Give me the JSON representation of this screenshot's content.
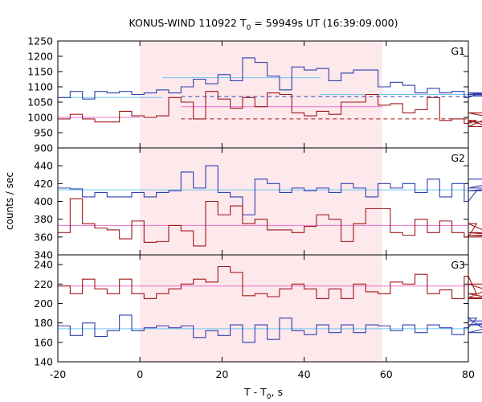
{
  "chart_data": {
    "type": "line",
    "title": {
      "prefix": "KONUS-WIND 110922 T",
      "sub": "0",
      "suffix": " = 59949s UT (16:39:09.000)"
    },
    "xlabel": {
      "prefix": "T - T",
      "sub": "0",
      "suffix": ", s"
    },
    "ylabel": "counts / sec",
    "xlim": [
      -20,
      80
    ],
    "xticks": [
      -20,
      0,
      20,
      40,
      60,
      80
    ],
    "shaded_region": {
      "x0": 0,
      "x1": 59,
      "color": "#fde8ec"
    },
    "bin_width": 3.0,
    "bin_start": -20.0,
    "colors": {
      "blue": "#3040b0",
      "red": "#a01818",
      "cyan": "#70c8f0",
      "pink": "#e870d0"
    },
    "panels": [
      {
        "label": "G1",
        "ylim": [
          900,
          1250
        ],
        "yticks": [
          900,
          950,
          1000,
          1050,
          1100,
          1150,
          1200,
          1250
        ],
        "series": [
          {
            "color": "blue",
            "values": [
              1065,
              1085,
              1060,
              1085,
              1080,
              1085,
              1075,
              1080,
              1090,
              1080,
              1100,
              1125,
              1110,
              1140,
              1120,
              1195,
              1180,
              1135,
              1090,
              1165,
              1155,
              1160,
              1120,
              1145,
              1155,
              1155,
              1100,
              1115,
              1105,
              1080,
              1095,
              1080,
              1085,
              1065,
              1075,
              1080,
              1075,
              1070
            ]
          },
          {
            "color": "red",
            "values": [
              995,
              1010,
              995,
              985,
              985,
              1020,
              1005,
              1000,
              1005,
              1065,
              1050,
              995,
              1085,
              1060,
              1030,
              1065,
              1035,
              1080,
              1075,
              1015,
              1005,
              1020,
              1010,
              1050,
              1050,
              1075,
              1040,
              1045,
              1015,
              1025,
              1065,
              990,
              995,
              980,
              990,
              970,
              1015,
              985
            ]
          }
        ],
        "lines": [
          {
            "color": "cyan",
            "style": "solid",
            "x0": -20,
            "x1": 5.5,
            "y": 1065
          },
          {
            "color": "cyan",
            "style": "solid",
            "x0": 5.5,
            "x1": 44,
            "y": 1130
          },
          {
            "color": "cyan",
            "style": "solid",
            "x0": 44,
            "x1": 80,
            "y": 1075
          },
          {
            "color": "pink",
            "style": "solid",
            "x0": -20,
            "x1": 0,
            "y": 1000
          },
          {
            "color": "pink",
            "style": "solid",
            "x0": 10,
            "x1": 59,
            "y": 1035
          },
          {
            "color": "blue",
            "style": "dashed",
            "x0": 10,
            "x1": 80,
            "y": 1068
          },
          {
            "color": "red",
            "style": "dashed",
            "x0": 10,
            "x1": 80,
            "y": 995
          }
        ]
      },
      {
        "label": "G2",
        "ylim": [
          340,
          460
        ],
        "yticks": [
          340,
          360,
          380,
          400,
          420,
          440
        ],
        "series": [
          {
            "color": "blue",
            "values": [
              415,
              414,
              405,
              410,
              405,
              405,
              410,
              405,
              410,
              412,
              433,
              415,
              440,
              410,
              405,
              385,
              425,
              420,
              410,
              415,
              412,
              415,
              410,
              420,
              415,
              405,
              420,
              415,
              420,
              410,
              425,
              405,
              420,
              400,
              412,
              412,
              415,
              425
            ]
          },
          {
            "color": "red",
            "values": [
              365,
              403,
              375,
              370,
              368,
              358,
              378,
              354,
              355,
              373,
              367,
              350,
              400,
              385,
              395,
              375,
              380,
              368,
              368,
              365,
              372,
              385,
              380,
              355,
              375,
              392,
              392,
              365,
              362,
              380,
              365,
              378,
              365,
              360,
              375,
              365,
              362,
              360
            ]
          }
        ],
        "lines": [
          {
            "color": "cyan",
            "style": "solid",
            "x0": -20,
            "x1": 80,
            "y": 413
          },
          {
            "color": "pink",
            "style": "solid",
            "x0": -20,
            "x1": 80,
            "y": 373
          }
        ]
      },
      {
        "label": "G3",
        "ylim": [
          140,
          250
        ],
        "yticks": [
          140,
          160,
          180,
          200,
          220,
          240
        ],
        "series": [
          {
            "color": "red",
            "values": [
              218,
              210,
              225,
              215,
              210,
              225,
              210,
              205,
              210,
              215,
              220,
              225,
              222,
              238,
              232,
              208,
              210,
              207,
              215,
              220,
              215,
              205,
              215,
              205,
              220,
              212,
              210,
              222,
              220,
              230,
              210,
              214,
              205,
              228,
              210,
              206,
              220,
              205
            ]
          },
          {
            "color": "blue",
            "values": [
              177,
              167,
              180,
              166,
              172,
              188,
              172,
              175,
              177,
              175,
              177,
              165,
              172,
              167,
              178,
              160,
              178,
              163,
              185,
              172,
              168,
              178,
              170,
              178,
              170,
              178,
              177,
              172,
              178,
              170,
              178,
              175,
              168,
              175,
              185,
              170,
              178,
              182
            ]
          }
        ],
        "lines": [
          {
            "color": "cyan",
            "style": "solid",
            "x0": -20,
            "x1": 80,
            "y": 174
          },
          {
            "color": "pink",
            "style": "solid",
            "x0": -20,
            "x1": 80,
            "y": 218
          }
        ]
      }
    ]
  }
}
